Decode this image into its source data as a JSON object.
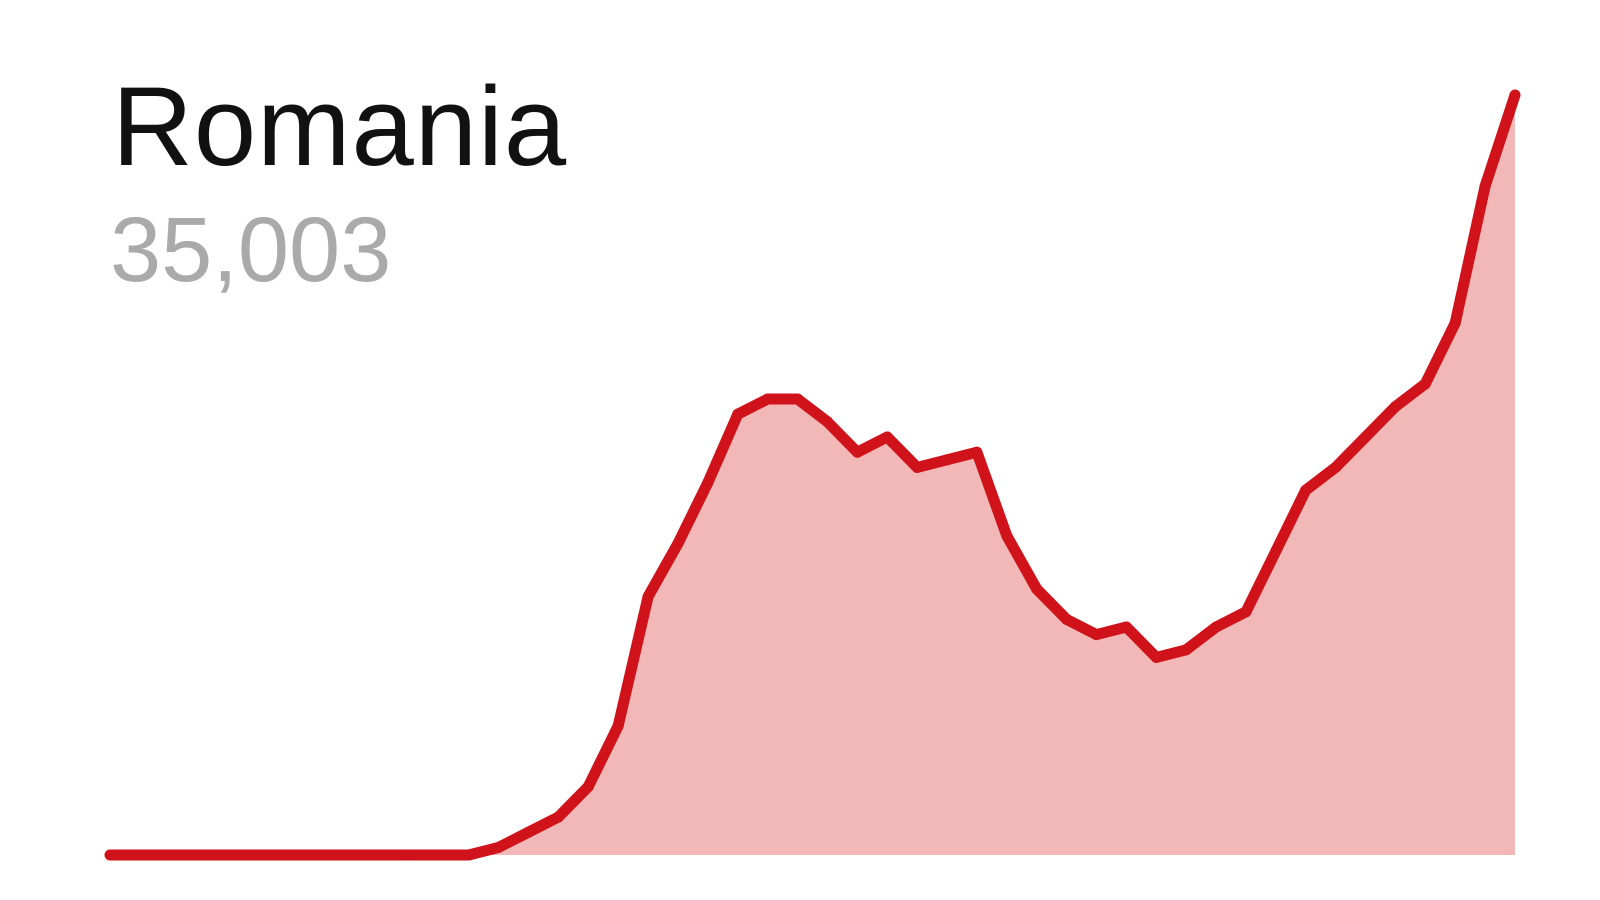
{
  "chart_data": {
    "type": "area",
    "title": "Romania",
    "subtitle": "35,003",
    "xlabel": "",
    "ylabel": "",
    "grid": false,
    "colors": {
      "line": "#d0121b",
      "fill": "#f2b8b8"
    },
    "series": [
      {
        "values": [
          0,
          0,
          0,
          0,
          0,
          0,
          0,
          0,
          0,
          0,
          0,
          0,
          0,
          1,
          3,
          5,
          9,
          17,
          34,
          41,
          49,
          58,
          60,
          60,
          57,
          53,
          55,
          51,
          52,
          53,
          42,
          35,
          31,
          29,
          30,
          26,
          27,
          30,
          32,
          40,
          48,
          51,
          55,
          59,
          62,
          70,
          88,
          100
        ]
      }
    ]
  }
}
